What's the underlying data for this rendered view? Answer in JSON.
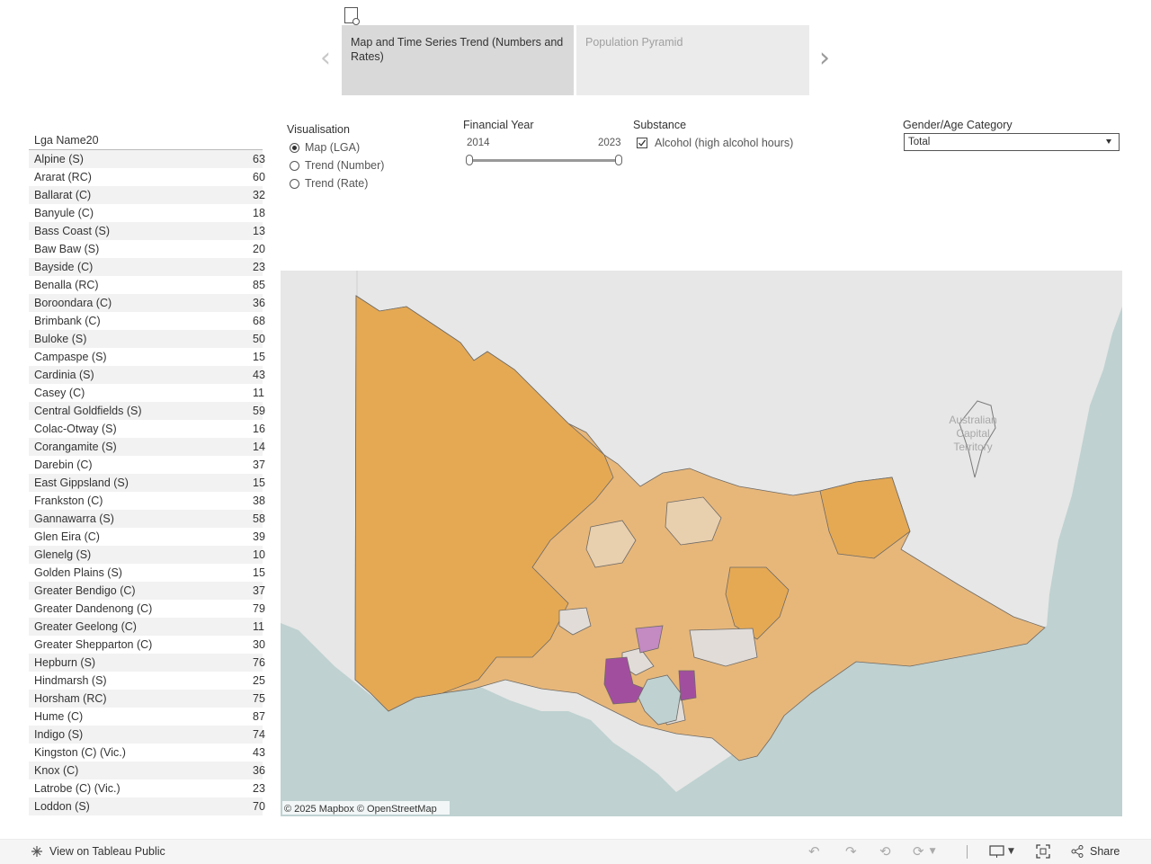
{
  "story": {
    "points": [
      {
        "label": "Map and Time Series Trend (Numbers and Rates)",
        "active": true
      },
      {
        "label": "Population Pyramid",
        "active": false
      }
    ]
  },
  "filters": {
    "visualisation": {
      "title": "Visualisation",
      "options": [
        "Map (LGA)",
        "Trend (Number)",
        "Trend (Rate)"
      ],
      "selected": "Map (LGA)"
    },
    "financial_year": {
      "title": "Financial Year",
      "min_label": "2014",
      "max_label": "2023"
    },
    "substance": {
      "title": "Substance",
      "option": "Alcohol (high alcohol hours)",
      "checked": true
    },
    "gender_age": {
      "title": "Gender/Age Category",
      "value": "Total"
    }
  },
  "table": {
    "header": "Lga Name20",
    "rows": [
      {
        "name": "Alpine (S)",
        "value": "63"
      },
      {
        "name": "Ararat (RC)",
        "value": "60"
      },
      {
        "name": "Ballarat (C)",
        "value": "32"
      },
      {
        "name": "Banyule (C)",
        "value": "18"
      },
      {
        "name": "Bass Coast (S)",
        "value": "13"
      },
      {
        "name": "Baw Baw (S)",
        "value": "20"
      },
      {
        "name": "Bayside (C)",
        "value": "23"
      },
      {
        "name": "Benalla (RC)",
        "value": "85"
      },
      {
        "name": "Boroondara (C)",
        "value": "36"
      },
      {
        "name": "Brimbank (C)",
        "value": "68"
      },
      {
        "name": "Buloke (S)",
        "value": "50"
      },
      {
        "name": "Campaspe (S)",
        "value": "15"
      },
      {
        "name": "Cardinia (S)",
        "value": "43"
      },
      {
        "name": "Casey (C)",
        "value": "11"
      },
      {
        "name": "Central Goldfields (S)",
        "value": "59"
      },
      {
        "name": "Colac-Otway (S)",
        "value": "16"
      },
      {
        "name": "Corangamite (S)",
        "value": "14"
      },
      {
        "name": "Darebin (C)",
        "value": "37"
      },
      {
        "name": "East Gippsland (S)",
        "value": "15"
      },
      {
        "name": "Frankston (C)",
        "value": "38"
      },
      {
        "name": "Gannawarra (S)",
        "value": "58"
      },
      {
        "name": "Glen Eira (C)",
        "value": "39"
      },
      {
        "name": "Glenelg (S)",
        "value": "10"
      },
      {
        "name": "Golden Plains (S)",
        "value": "15"
      },
      {
        "name": "Greater Bendigo (C)",
        "value": "37"
      },
      {
        "name": "Greater Dandenong (C)",
        "value": "79"
      },
      {
        "name": "Greater Geelong (C)",
        "value": "11"
      },
      {
        "name": "Greater Shepparton (C)",
        "value": "30"
      },
      {
        "name": "Hepburn (S)",
        "value": "76"
      },
      {
        "name": "Hindmarsh (S)",
        "value": "25"
      },
      {
        "name": "Horsham (RC)",
        "value": "75"
      },
      {
        "name": "Hume (C)",
        "value": "87"
      },
      {
        "name": "Indigo (S)",
        "value": "74"
      },
      {
        "name": "Kingston (C) (Vic.)",
        "value": "43"
      },
      {
        "name": "Knox (C)",
        "value": "36"
      },
      {
        "name": "Latrobe (C) (Vic.)",
        "value": "23"
      },
      {
        "name": "Loddon (S)",
        "value": "70"
      }
    ]
  },
  "map": {
    "territory_label": [
      "Australian",
      "Capital",
      "Territory"
    ],
    "attribution": "© 2025 Mapbox  © OpenStreetMap",
    "colors": {
      "sea": "#bfd1d1",
      "land": "#e6e7e6",
      "lga_high": "#e5a954",
      "lga_mid": "#e7b77a",
      "lga_low": "#e8cfae",
      "lga_grey": "#e1dcd8",
      "purple_dark": "#a24e9f",
      "purple_light": "#c48ac2"
    }
  },
  "toolbar": {
    "view_label": "View on Tableau Public",
    "share_label": "Share"
  }
}
